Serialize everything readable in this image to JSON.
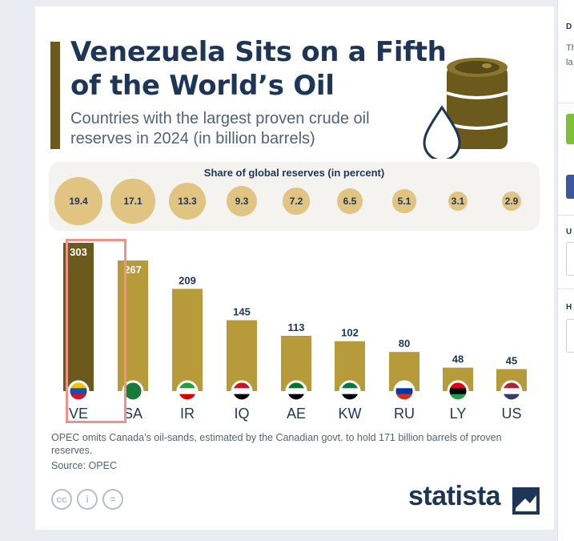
{
  "title": "Venezuela Sits on a Fifth of the World’s Oil",
  "subtitle": "Countries with the largest proven crude oil reserves in 2024 (in billion barrels)",
  "share": {
    "title": "Share of global reserves (in percent)",
    "values": [
      "19.4",
      "17.1",
      "13.3",
      "9.3",
      "7.2",
      "6.5",
      "5.1",
      "3.1",
      "2.9"
    ]
  },
  "chart_data": {
    "type": "bar",
    "title": "Venezuela Sits on a Fifth of the World’s Oil",
    "subtitle": "Countries with the largest proven crude oil reserves in 2024 (in billion barrels)",
    "categories": [
      "VE",
      "SA",
      "IR",
      "IQ",
      "AE",
      "KW",
      "RU",
      "LY",
      "US"
    ],
    "values": [
      303,
      267,
      209,
      145,
      113,
      102,
      80,
      48,
      45
    ],
    "share_percent": [
      19.4,
      17.1,
      13.3,
      9.3,
      7.2,
      6.5,
      5.1,
      3.1,
      2.9
    ],
    "ylim": [
      0,
      303
    ],
    "grid": false,
    "highlighted_category": "SA",
    "colors": {
      "first_bar": "#6b5a1c",
      "bars": "#b79a3a",
      "bubble": "#e2c482",
      "highlight": "#f0928a"
    }
  },
  "footnote": "OPEC omits Canada’s oil-sands, estimated by the Canadian govt. to hold 171 billion barrels of proven reserves.",
  "source": "Source: OPEC",
  "license_icons": [
    "cc",
    "i",
    "="
  ],
  "brand": "statista",
  "side_panel": {
    "label1": "D",
    "text1": "Th",
    "text2": "la",
    "label2": "U",
    "label3": "H"
  }
}
